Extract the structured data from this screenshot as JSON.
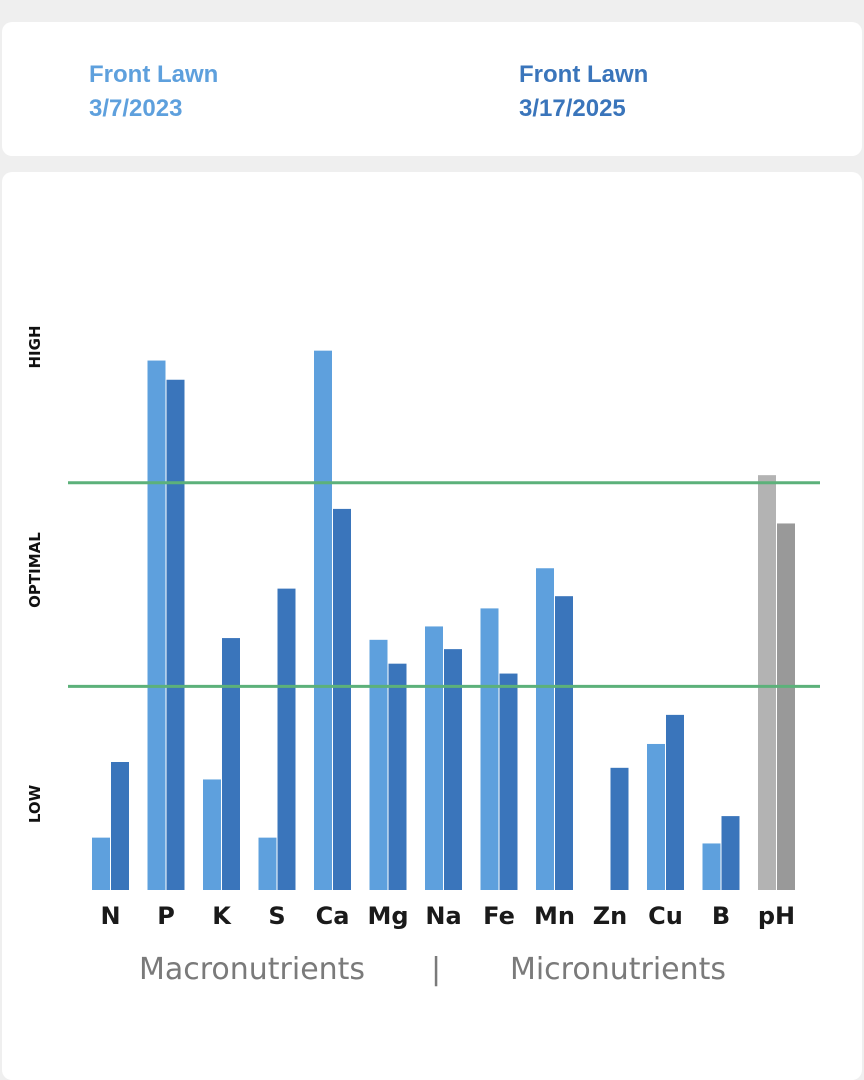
{
  "legend": {
    "entries": [
      {
        "location": "Front Lawn",
        "date": "3/7/2023",
        "color": "#5ea0dd"
      },
      {
        "location": "Front Lawn",
        "date": "3/17/2025",
        "color": "#3a75bb"
      }
    ]
  },
  "chart_data": {
    "type": "bar",
    "categories": [
      "N",
      "P",
      "K",
      "S",
      "Ca",
      "Mg",
      "Na",
      "Fe",
      "Mn",
      "Zn",
      "Cu",
      "B",
      "pH"
    ],
    "series": [
      {
        "name": "Front Lawn 3/7/2023",
        "color": "#5ea0dd",
        "ph_color": "#b3b3b3",
        "values": [
          9,
          91,
          19,
          9,
          92.7,
          43,
          45.3,
          48.4,
          55.3,
          null,
          25.1,
          8,
          71.3
        ]
      },
      {
        "name": "Front Lawn 3/17/2025",
        "color": "#3a75bb",
        "ph_color": "#999999",
        "values": [
          22,
          87.7,
          43.3,
          51.8,
          65.5,
          38.9,
          41.4,
          37.2,
          50.5,
          21,
          30.1,
          12.7,
          63
        ]
      }
    ],
    "y_levels": [
      "LOW",
      "OPTIMAL",
      "HIGH"
    ],
    "optimal_range": [
      35,
      70
    ],
    "ylim": [
      0,
      110
    ],
    "groups": [
      "Macronutrients",
      "Micronutrients"
    ],
    "group_separator": "|",
    "colors": {
      "optimal_line": "#5cb17a"
    }
  }
}
